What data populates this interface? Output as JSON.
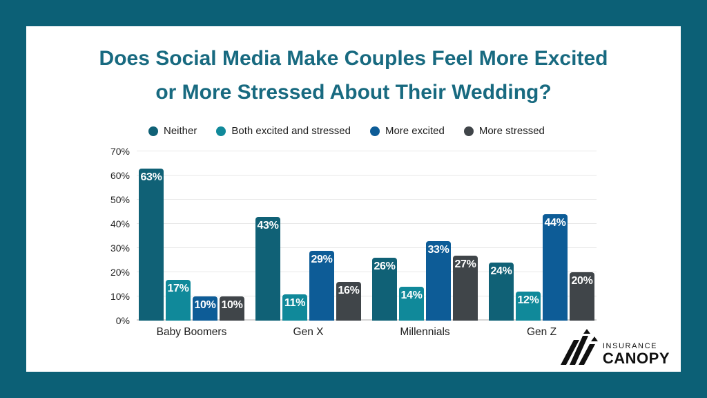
{
  "header": {
    "title_lines": [
      "Does Social Media Make Couples Feel More Excited",
      "or More Stressed About Their Wedding?"
    ]
  },
  "chart_data": {
    "type": "bar",
    "title": "Does Social Media Make Couples Feel More Excited or More Stressed About Their Wedding?",
    "categories": [
      "Baby Boomers",
      "Gen X",
      "Millennials",
      "Gen Z"
    ],
    "series": [
      {
        "name": "Neither",
        "color": "#106176",
        "values": [
          63,
          43,
          26,
          24
        ]
      },
      {
        "name": "Both excited and stressed",
        "color": "#10899a",
        "values": [
          17,
          11,
          14,
          12
        ]
      },
      {
        "name": "More excited",
        "color": "#0d5c97",
        "values": [
          10,
          29,
          33,
          44
        ]
      },
      {
        "name": "More stressed",
        "color": "#404549",
        "values": [
          10,
          16,
          27,
          20
        ]
      }
    ],
    "xlabel": "",
    "ylabel": "",
    "ylim": [
      0,
      70
    ],
    "y_ticks": [
      0,
      10,
      20,
      30,
      40,
      50,
      60,
      70
    ],
    "tick_suffix": "%",
    "value_suffix": "%",
    "grid": "horizontal",
    "legend_position": "top"
  },
  "branding": {
    "logo_line1": "INSURANCE",
    "logo_line2": "CANOPY"
  },
  "colors": {
    "frame": "#0c6076",
    "card": "#ffffff",
    "title": "#186a80",
    "gridline": "#e8e8e8",
    "axis_text": "#262626",
    "bar_value_text": "#ffffff"
  }
}
